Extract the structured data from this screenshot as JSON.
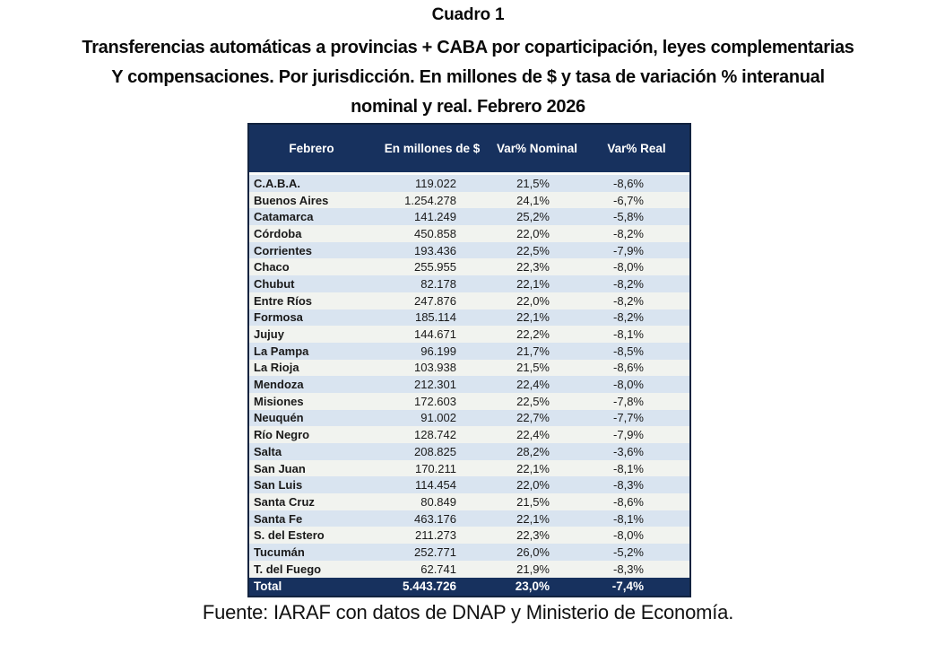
{
  "title": {
    "line1": "Cuadro 1",
    "line2": "Transferencias automáticas a provincias + CABA por coparticipación, leyes complementarias",
    "line3": "Y compensaciones. Por jurisdicción. En millones de $ y tasa de variación % interanual",
    "line4": "nominal y real. Febrero 2026"
  },
  "table": {
    "headers": [
      "Febrero",
      "En millones de $",
      "Var% Nominal",
      "Var% Real"
    ],
    "rows": [
      [
        "C.A.B.A.",
        "119.022",
        "21,5%",
        "-8,6%"
      ],
      [
        "Buenos Aires",
        "1.254.278",
        "24,1%",
        "-6,7%"
      ],
      [
        "Catamarca",
        "141.249",
        "25,2%",
        "-5,8%"
      ],
      [
        "Córdoba",
        "450.858",
        "22,0%",
        "-8,2%"
      ],
      [
        "Corrientes",
        "193.436",
        "22,5%",
        "-7,9%"
      ],
      [
        "Chaco",
        "255.955",
        "22,3%",
        "-8,0%"
      ],
      [
        "Chubut",
        "82.178",
        "22,1%",
        "-8,2%"
      ],
      [
        "Entre Ríos",
        "247.876",
        "22,0%",
        "-8,2%"
      ],
      [
        "Formosa",
        "185.114",
        "22,1%",
        "-8,2%"
      ],
      [
        "Jujuy",
        "144.671",
        "22,2%",
        "-8,1%"
      ],
      [
        "La Pampa",
        "96.199",
        "21,7%",
        "-8,5%"
      ],
      [
        "La Rioja",
        "103.938",
        "21,5%",
        "-8,6%"
      ],
      [
        "Mendoza",
        "212.301",
        "22,4%",
        "-8,0%"
      ],
      [
        "Misiones",
        "172.603",
        "22,5%",
        "-7,8%"
      ],
      [
        "Neuquén",
        "91.002",
        "22,7%",
        "-7,7%"
      ],
      [
        "Río Negro",
        "128.742",
        "22,4%",
        "-7,9%"
      ],
      [
        "Salta",
        "208.825",
        "28,2%",
        "-3,6%"
      ],
      [
        "San Juan",
        "170.211",
        "22,1%",
        "-8,1%"
      ],
      [
        "San Luis",
        "114.454",
        "22,0%",
        "-8,3%"
      ],
      [
        "Santa Cruz",
        "80.849",
        "21,5%",
        "-8,6%"
      ],
      [
        "Santa Fe",
        "463.176",
        "22,1%",
        "-8,1%"
      ],
      [
        "S. del Estero",
        "211.273",
        "22,3%",
        "-8,0%"
      ],
      [
        "Tucumán",
        "252.771",
        "26,0%",
        "-5,2%"
      ],
      [
        "T. del Fuego",
        "62.741",
        "21,9%",
        "-8,3%"
      ]
    ],
    "total": {
      "label": "Total",
      "millones": "5.443.726",
      "nominal": "23,0%",
      "real": "-7,4%"
    }
  },
  "footer": {
    "source": "Fuente: IARAF con datos de DNAP y Ministerio de Economía."
  },
  "colors": {
    "header_navy": "#17315E",
    "row_blue": "#D9E4F0",
    "row_light": "#F1F3EF",
    "table_border": "#12233F"
  }
}
